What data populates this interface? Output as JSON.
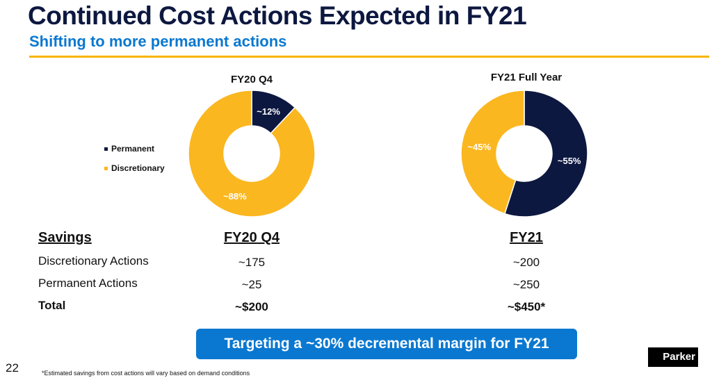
{
  "header": {
    "title": "Continued Cost Actions Expected in FY21",
    "subtitle": "Shifting to more permanent actions"
  },
  "colors": {
    "permanent": "#0d1840",
    "discretionary": "#fbb720",
    "accent": "#0a78d0",
    "rule": "#f7b500"
  },
  "legend": {
    "permanent": "Permanent",
    "discretionary": "Discretionary"
  },
  "chart_data": [
    {
      "type": "pie",
      "title": "FY20 Q4",
      "donut": true,
      "categories": [
        "Permanent",
        "Discretionary"
      ],
      "values": [
        12,
        88
      ],
      "labels": [
        "~12%",
        "~88%"
      ]
    },
    {
      "type": "pie",
      "title": "FY21 Full Year",
      "donut": true,
      "categories": [
        "Permanent",
        "Discretionary"
      ],
      "values": [
        55,
        45
      ],
      "labels": [
        "~55%",
        "~45%"
      ]
    }
  ],
  "table": {
    "headers": [
      "Savings",
      "FY20 Q4",
      "FY21"
    ],
    "rows": [
      {
        "label": "Discretionary Actions",
        "fy20q4": "~175",
        "fy21": "~200"
      },
      {
        "label": "Permanent Actions",
        "fy20q4": "~25",
        "fy21": "~250"
      },
      {
        "label": "Total",
        "fy20q4": "~$200",
        "fy21": "~$450*"
      }
    ]
  },
  "banner": "Targeting a ~30% decremental margin for FY21",
  "page_number": "22",
  "footnote": "*Estimated savings from cost actions will vary based on demand conditions",
  "logo": "Parker"
}
